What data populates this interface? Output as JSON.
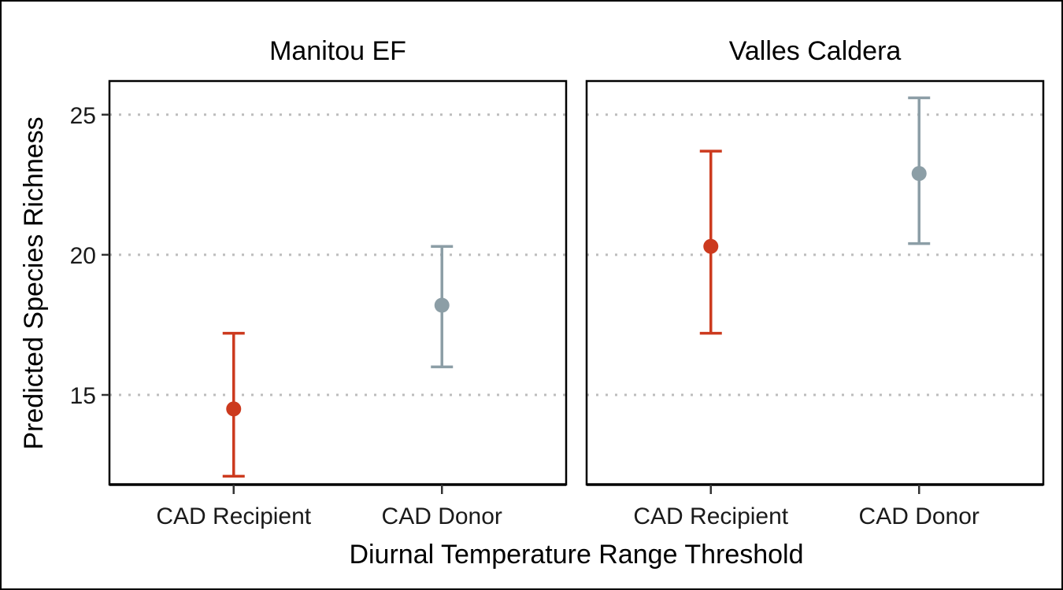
{
  "chart_data": {
    "type": "errorbar",
    "xlabel": "Diurnal Temperature Range Threshold",
    "ylabel": "Predicted Species Richness",
    "categories": [
      "CAD Recipient",
      "CAD Donor"
    ],
    "category_colors": [
      "#CC3A1E",
      "#8C9EA6"
    ],
    "y_ticks": [
      15,
      20,
      25
    ],
    "ylim": [
      11.8,
      26.2
    ],
    "grid": "horizontal dotted",
    "panels": [
      {
        "title": "Manitou EF",
        "points": [
          {
            "category": "CAD Recipient",
            "estimate": 14.5,
            "lower": 12.1,
            "upper": 17.2
          },
          {
            "category": "CAD Donor",
            "estimate": 18.2,
            "lower": 16.0,
            "upper": 20.3
          }
        ]
      },
      {
        "title": "Valles Caldera",
        "points": [
          {
            "category": "CAD Recipient",
            "estimate": 20.3,
            "lower": 17.2,
            "upper": 23.7
          },
          {
            "category": "CAD Donor",
            "estimate": 22.9,
            "lower": 20.4,
            "upper": 25.6
          }
        ]
      }
    ]
  }
}
